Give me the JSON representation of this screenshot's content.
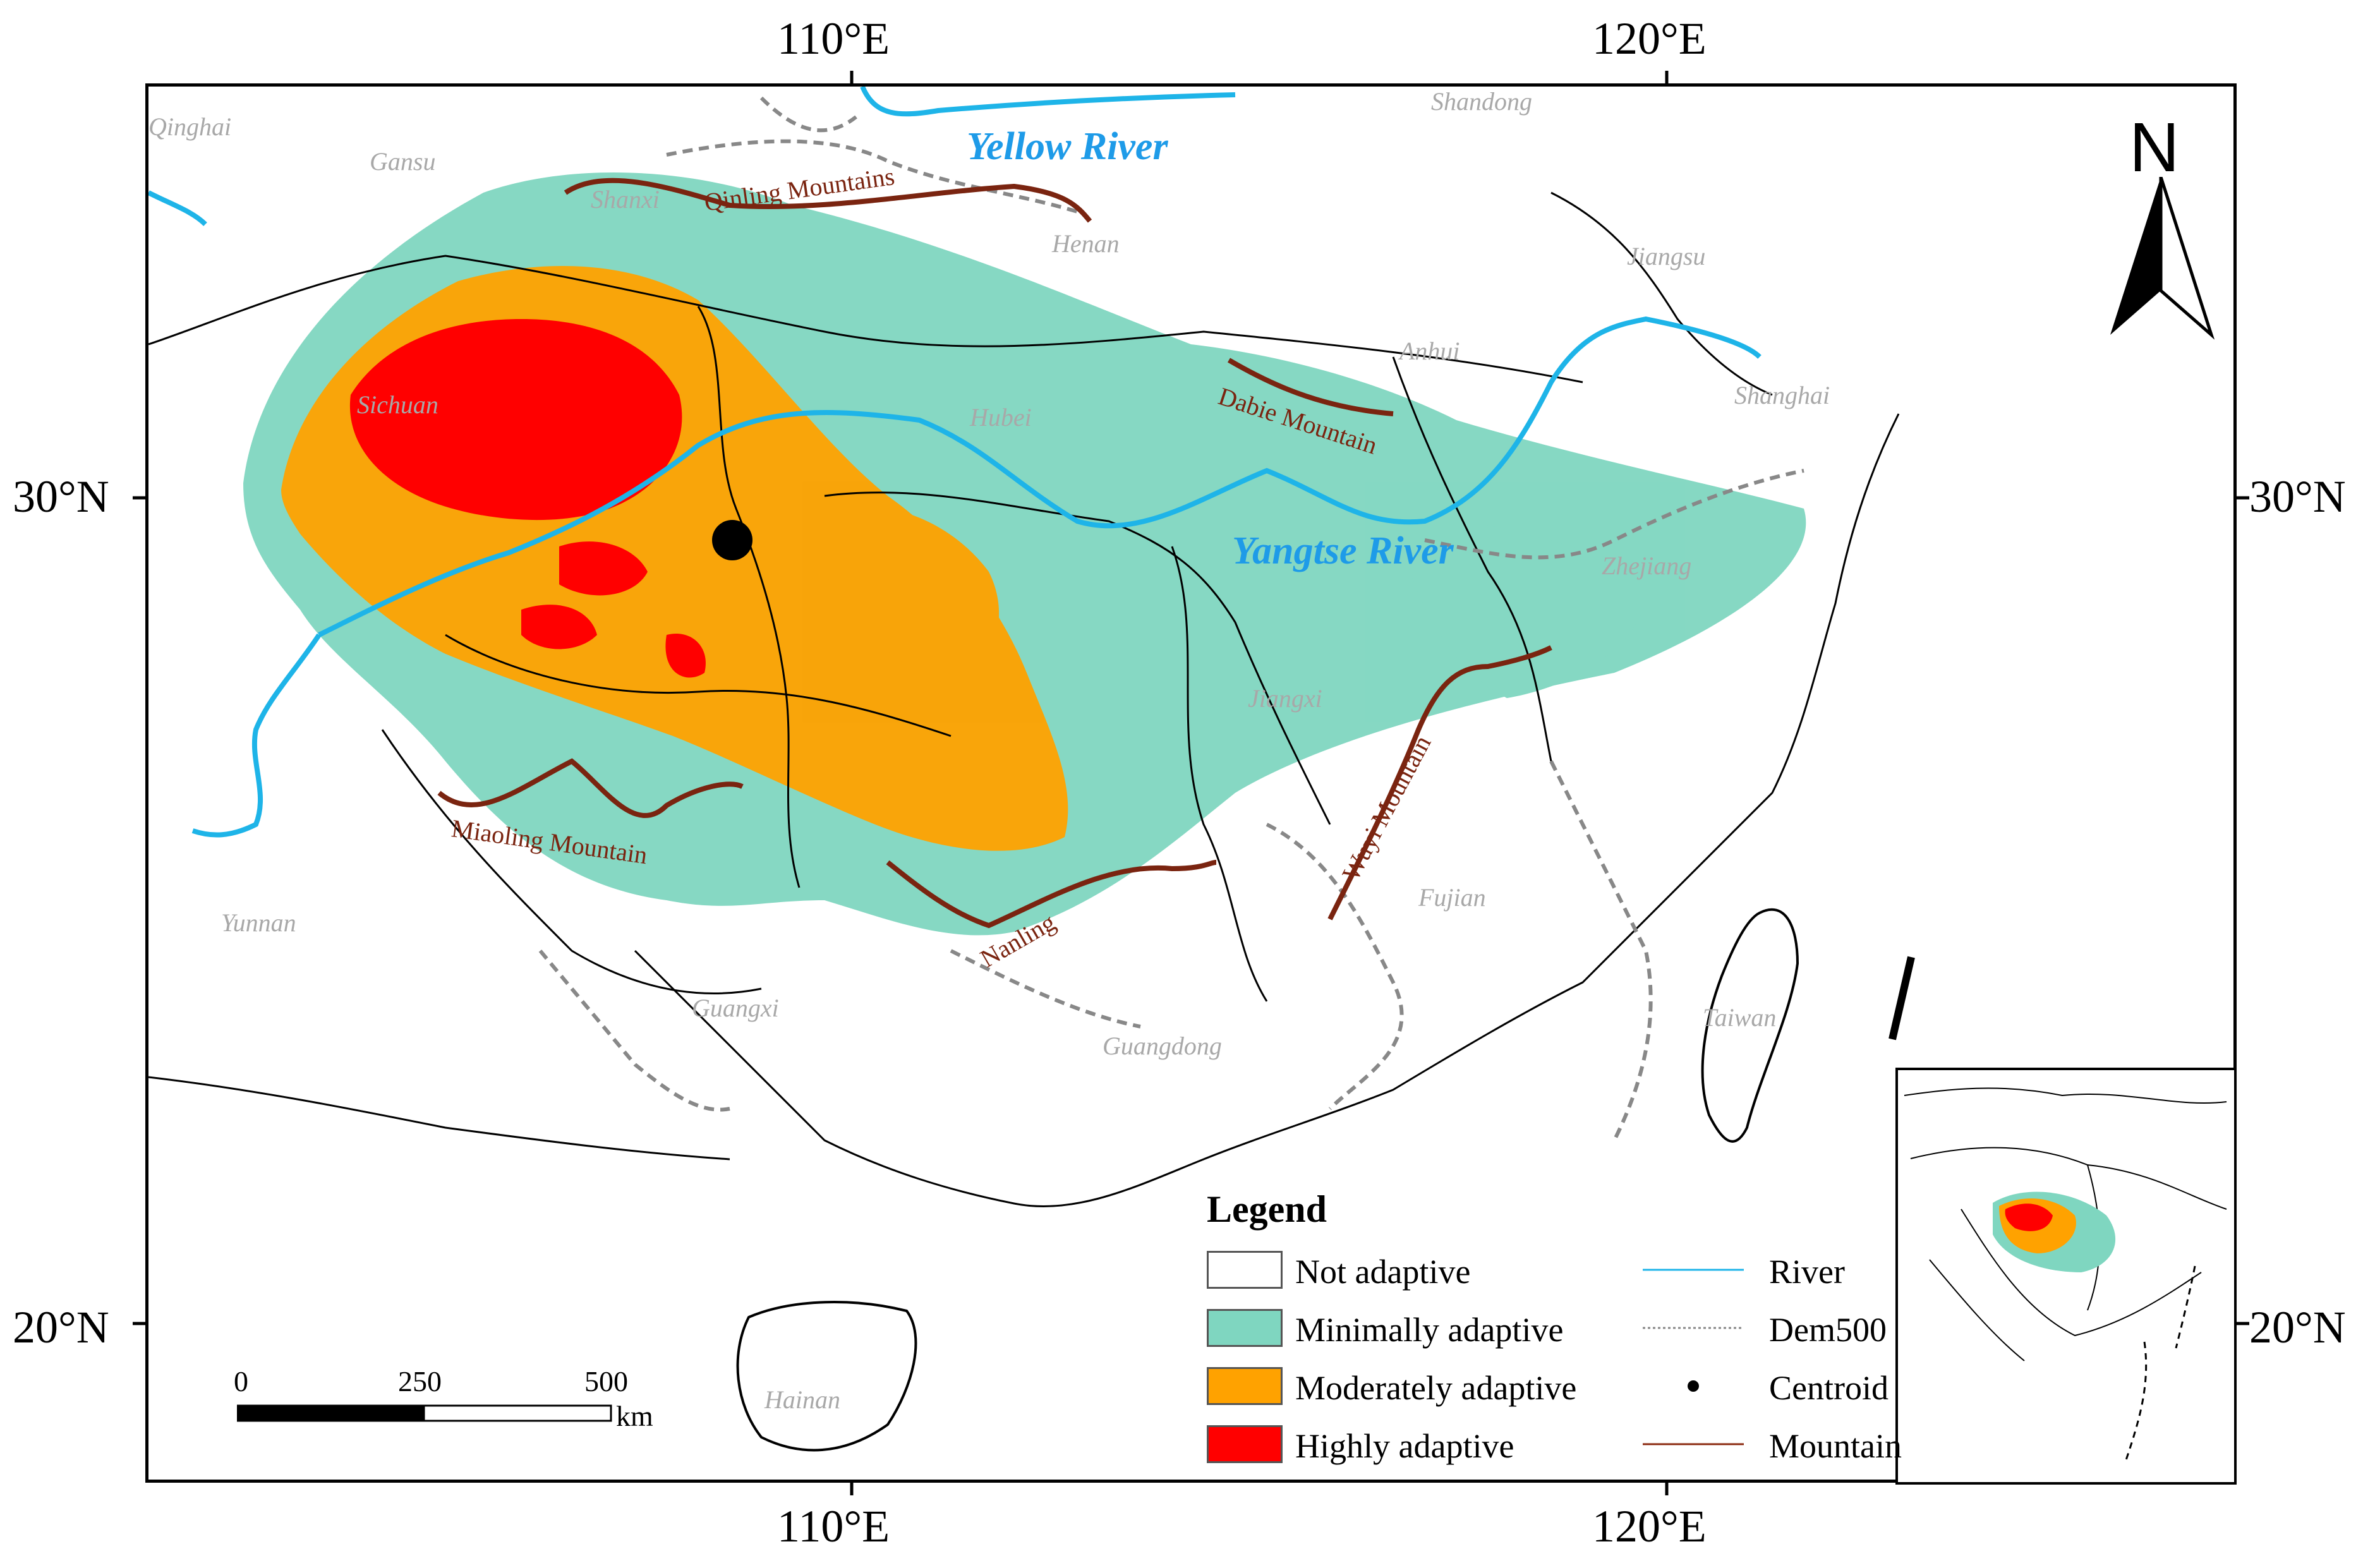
{
  "axes": {
    "top": [
      "110°E",
      "120°E"
    ],
    "bottom": [
      "110°E",
      "120°E"
    ],
    "left": [
      "30°N",
      "20°N"
    ],
    "right": [
      "30°N",
      "20°N"
    ]
  },
  "provinces": {
    "qinghai": "Qinghai",
    "gansu": "Gansu",
    "shanxi": "Shanxi",
    "shandong": "Shandong",
    "henan": "Henan",
    "jiangsu": "Jiangsu",
    "anhui": "Anhui",
    "sichuan": "Sichuan",
    "hubei": "Hubei",
    "shanghai": "Shanghai",
    "zhejiang": "Zhejiang",
    "jiangxi": "Jiangxi",
    "fujian": "Fujian",
    "yunnan": "Yunnan",
    "guangxi": "Guangxi",
    "guangdong": "Guangdong",
    "taiwan": "Taiwan",
    "hainan": "Hainan"
  },
  "rivers": {
    "yellow": "Yellow River",
    "yangtse": "Yangtse River"
  },
  "mountains": {
    "qinling": "Qinling Mountains",
    "dabie": "Dabie Mountain",
    "miaoling": "Miaoling Mountain",
    "nanling": "Nanling",
    "wuyi": "Wuyi Mountain"
  },
  "north": "N",
  "legend": {
    "title": "Legend",
    "classes": [
      {
        "label": "Not adaptive",
        "color": "#ffffff"
      },
      {
        "label": "Minimally adaptive",
        "color": "#7fd6c0"
      },
      {
        "label": "Moderately adaptive",
        "color": "#ffa200"
      },
      {
        "label": "Highly adaptive",
        "color": "#ff0000"
      }
    ],
    "symbols": [
      {
        "label": "River",
        "color": "#1eb4e8"
      },
      {
        "label": "Dem500",
        "color": "#888888"
      },
      {
        "label": "Centroid",
        "color": "#000000"
      },
      {
        "label": "Mountain",
        "color": "#8b2a10"
      }
    ]
  },
  "scale": {
    "ticks": [
      "0",
      "250",
      "500"
    ],
    "unit": "km"
  },
  "colors": {
    "river": "#1eb4e8",
    "mountain": "#7a2410",
    "dem": "#888888",
    "minimal": "#7fd6c0",
    "moderate": "#ffa200",
    "high": "#ff0000"
  }
}
